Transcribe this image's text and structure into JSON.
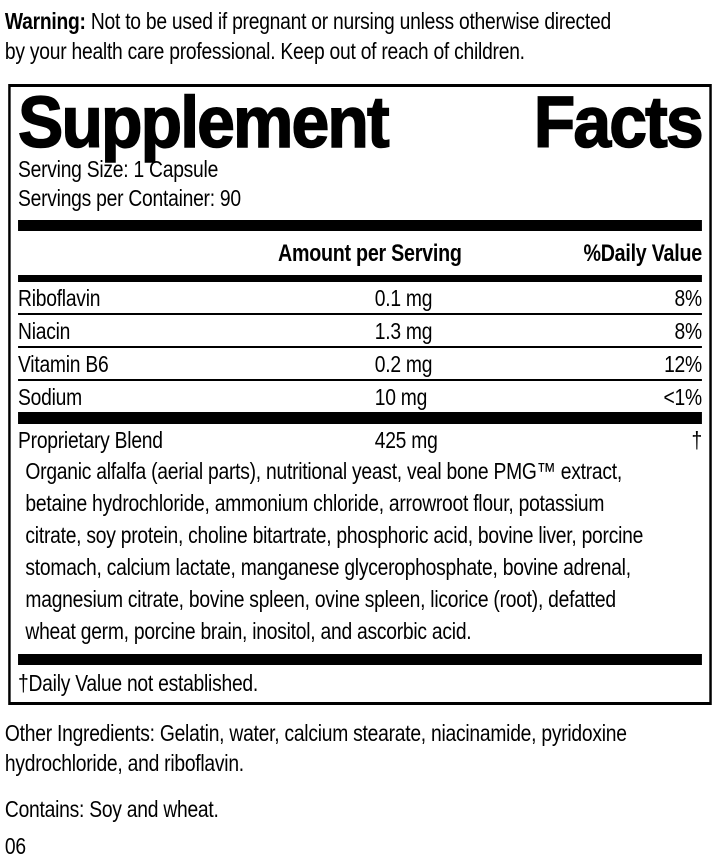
{
  "warning": {
    "label": "Warning:",
    "line1_rest": " Not to be used if pregnant or nursing unless otherwise directed",
    "line2": "by your health care professional. Keep out of reach of children.",
    "full_text": "Warning: Not to be used if pregnant or nursing unless otherwise directed by your health care professional. Keep out of reach of children."
  },
  "panel": {
    "title": "Supplement Facts",
    "serving_size": "Serving Size: 1 Capsule",
    "servings_per_container": "Servings per Container: 90",
    "columns": {
      "amount": "Amount per Serving",
      "daily_value": "%Daily Value"
    },
    "rows": [
      {
        "name": "Riboflavin",
        "amount": "0.1 mg",
        "dv": "8%"
      },
      {
        "name": "Niacin",
        "amount": "1.3 mg",
        "dv": "8%"
      },
      {
        "name": "Vitamin B6",
        "amount": "0.2 mg",
        "dv": "12%"
      },
      {
        "name": "Sodium",
        "amount": "10 mg",
        "dv": "<1%"
      }
    ],
    "blend": {
      "name": "Proprietary Blend",
      "amount": "425 mg",
      "dv": "†",
      "ingredients_full": "Organic alfalfa (aerial parts), nutritional yeast, veal bone PMG™ extract, betaine hydrochloride, ammonium chloride, arrowroot flour, potassium citrate, soy protein, choline bitartrate, phosphoric acid, bovine liver, porcine stomach, calcium lactate, manganese glycerophosphate, bovine adrenal, magnesium citrate, bovine spleen, ovine spleen, licorice (root), defatted wheat germ, porcine brain, inositol, and ascorbic acid.",
      "ingredients_lines": [
        "Organic alfalfa (aerial parts), nutritional yeast, veal bone PMG™ extract,",
        "betaine hydrochloride, ammonium chloride, arrowroot flour, potassium",
        "citrate, soy protein, choline bitartrate, phosphoric acid, bovine liver, porcine",
        "stomach, calcium lactate, manganese glycerophosphate, bovine adrenal,",
        "magnesium citrate, bovine spleen, ovine spleen, licorice (root), defatted",
        "wheat germ, porcine brain, inositol, and ascorbic acid."
      ]
    },
    "footnote": "†Daily Value not established."
  },
  "other_ingredients": {
    "line1": "Other Ingredients: Gelatin, water, calcium stearate, niacinamide, pyridoxine",
    "line2": "hydrochloride, and riboflavin.",
    "full_text": "Other Ingredients: Gelatin, water, calcium stearate, niacinamide, pyridoxine hydrochloride, and riboflavin."
  },
  "contains": "Contains: Soy and wheat.",
  "lot_code": "06",
  "colors": {
    "ink": "#000000",
    "background": "#ffffff"
  }
}
